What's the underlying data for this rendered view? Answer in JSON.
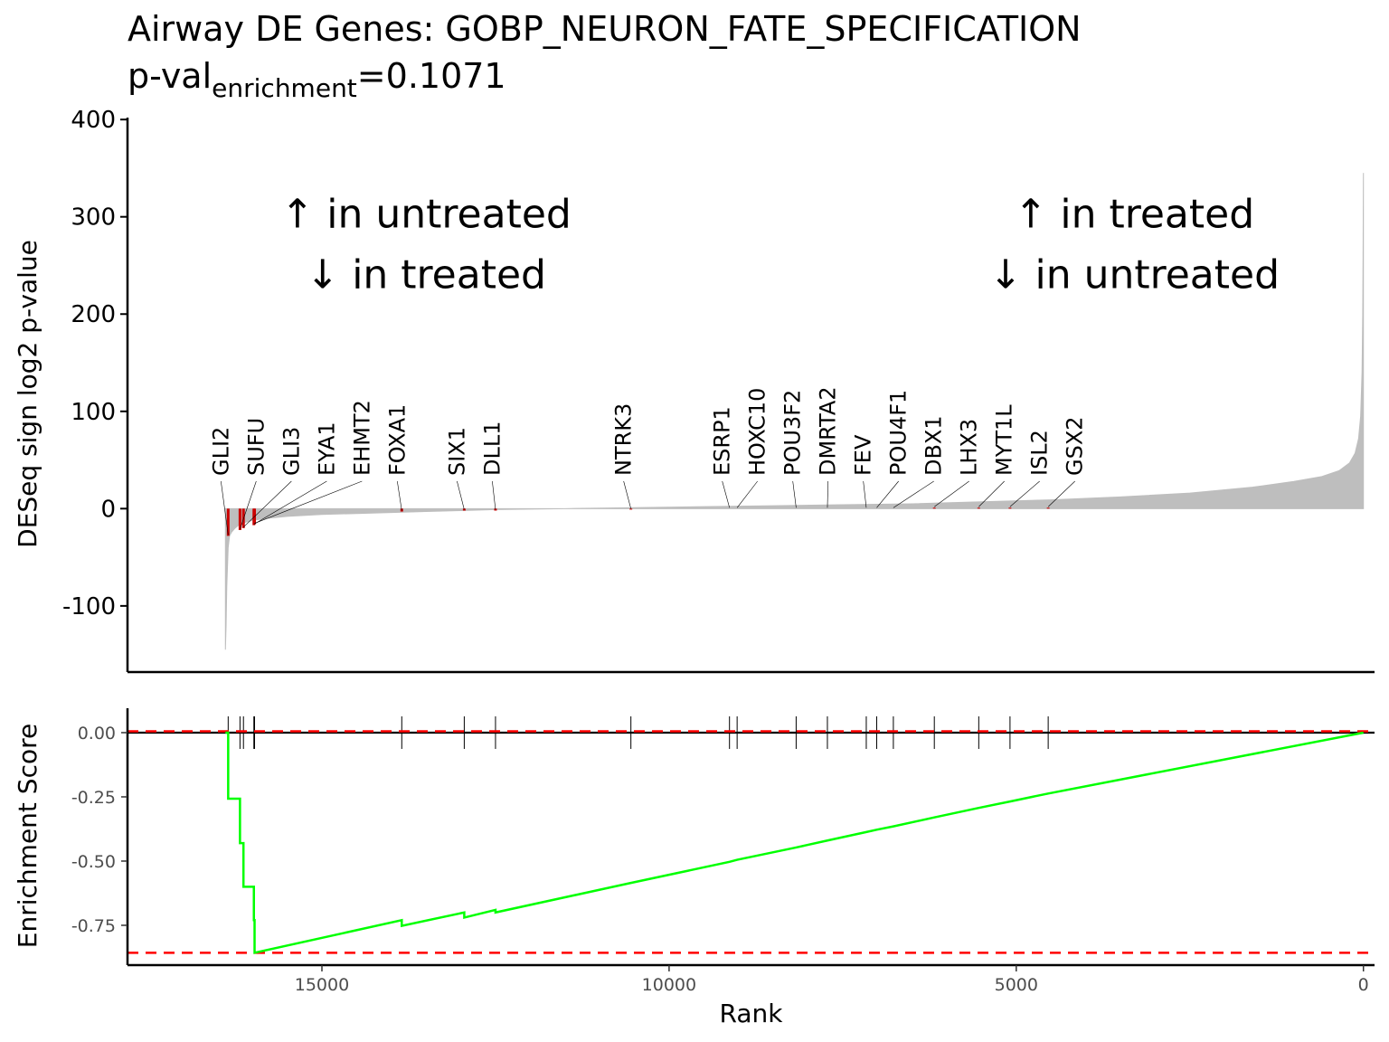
{
  "chart_data": [
    {
      "type": "area",
      "title": "Airway DE Genes: GOBP_NEURON_FATE_SPECIFICATION",
      "subtitle": {
        "prefix": "p-val",
        "subscript": "enrichment",
        "suffix": "=0.1071"
      },
      "xlabel": "",
      "ylabel": "DESeq sign log2 p-value",
      "x_reversed": true,
      "xlim": [
        -160,
        17800
      ],
      "ylim": [
        -168,
        402
      ],
      "yticks": [
        400,
        300,
        200,
        100,
        0,
        -100
      ],
      "ytick_labels": [
        "400",
        "300",
        "200",
        "100",
        "0",
        "-100"
      ],
      "ranked_curve": {
        "rank": [
          0,
          5,
          10,
          20,
          40,
          70,
          120,
          200,
          350,
          600,
          1000,
          1600,
          2500,
          3500,
          4500,
          5500,
          6500,
          7500,
          8500,
          9500,
          10500,
          11500,
          12500,
          13000,
          13500,
          14000,
          14500,
          15000,
          15500,
          15800,
          16000,
          16100,
          16200,
          16250,
          16300,
          16330,
          16350,
          16370,
          16380,
          16390
        ],
        "value": [
          345,
          260,
          200,
          140,
          95,
          72,
          57,
          47,
          39,
          33,
          28,
          22,
          16,
          12,
          9,
          7,
          5,
          4,
          3,
          2,
          1,
          0,
          -1,
          -2,
          -3,
          -4,
          -5,
          -6,
          -8,
          -10,
          -12,
          -14,
          -17,
          -20,
          -24,
          -28,
          -40,
          -80,
          -120,
          -145
        ],
        "color": "#bebebe"
      },
      "gene_hits": [
        {
          "gene": "GLI2",
          "rank": 16350,
          "value": -28
        },
        {
          "gene": "SUFU",
          "rank": 16180,
          "value": -22
        },
        {
          "gene": "GLI3",
          "rank": 16130,
          "value": -20
        },
        {
          "gene": "EYA1",
          "rank": 15980,
          "value": -17
        },
        {
          "gene": "EHMT2",
          "rank": 15970,
          "value": -16
        },
        {
          "gene": "FOXA1",
          "rank": 13850,
          "value": -3
        },
        {
          "gene": "SIX1",
          "rank": 12950,
          "value": -2
        },
        {
          "gene": "DLL1",
          "rank": 12500,
          "value": -2
        },
        {
          "gene": "NTRK3",
          "rank": 10550,
          "value": -1
        },
        {
          "gene": "ESRP1",
          "rank": 9130,
          "value": 0
        },
        {
          "gene": "HOXC10",
          "rank": 9020,
          "value": 0
        },
        {
          "gene": "POU3F2",
          "rank": 8170,
          "value": 0
        },
        {
          "gene": "DMRTA2",
          "rank": 7720,
          "value": 0
        },
        {
          "gene": "FEV",
          "rank": 7160,
          "value": 0
        },
        {
          "gene": "POU4F1",
          "rank": 7010,
          "value": 0
        },
        {
          "gene": "DBX1",
          "rank": 6770,
          "value": 0
        },
        {
          "gene": "LHX3",
          "rank": 6180,
          "value": 1
        },
        {
          "gene": "MYT1L",
          "rank": 5540,
          "value": 1
        },
        {
          "gene": "ISL2",
          "rank": 5090,
          "value": 1
        },
        {
          "gene": "GSX2",
          "rank": 4540,
          "value": 1
        }
      ],
      "hit_color": "#cc0000",
      "annotations": [
        {
          "line1": "↑ in untreated",
          "line2": "↓ in treated",
          "x": 13500,
          "y": 278
        },
        {
          "line1": "↑ in treated",
          "line2": "↓ in untreated",
          "x": 3300,
          "y": 278
        }
      ]
    },
    {
      "type": "line",
      "title": "",
      "xlabel": "Rank",
      "ylabel": "Enrichment Score",
      "x_reversed": true,
      "xlim": [
        -160,
        17800
      ],
      "ylim": [
        -0.905,
        0.095
      ],
      "xticks": [
        15000,
        10000,
        5000,
        0
      ],
      "xtick_labels": [
        "15000",
        "10000",
        "5000",
        "0"
      ],
      "yticks": [
        0.0,
        -0.25,
        -0.5,
        -0.75
      ],
      "ytick_labels": [
        "0.00",
        "-0.25",
        "-0.50",
        "-0.75"
      ],
      "series": [
        {
          "color": "#00ff00",
          "x": [
            16390,
            16350,
            16350,
            16180,
            16180,
            16130,
            16130,
            15980,
            15980,
            15970,
            15970,
            13850,
            13850,
            12950,
            12950,
            12500,
            12500,
            10550,
            10550,
            9130,
            9130,
            9020,
            9020,
            8170,
            8170,
            7720,
            7720,
            7160,
            7160,
            7010,
            7010,
            6770,
            6770,
            6180,
            6180,
            5540,
            5540,
            5090,
            5090,
            4540,
            4540,
            0
          ],
          "y": [
            0.0,
            0.0,
            -0.257,
            -0.257,
            -0.43,
            -0.43,
            -0.6,
            -0.6,
            -0.73,
            -0.73,
            -0.857,
            -0.73,
            -0.752,
            -0.7,
            -0.72,
            -0.69,
            -0.7,
            -0.585,
            -0.585,
            -0.503,
            -0.503,
            -0.495,
            -0.495,
            -0.447,
            -0.447,
            -0.42,
            -0.42,
            -0.387,
            -0.387,
            -0.378,
            -0.378,
            -0.365,
            -0.365,
            -0.33,
            -0.33,
            -0.293,
            -0.293,
            -0.268,
            -0.268,
            -0.237,
            -0.237,
            0.0
          ]
        }
      ],
      "reference_lines": [
        {
          "y": 0.0,
          "color": "#000000",
          "style": "solid"
        },
        {
          "y": 0.005,
          "color": "#ff0000",
          "style": "dashed"
        },
        {
          "y": -0.857,
          "color": "#ff0000",
          "style": "dashed"
        }
      ],
      "rug_ranks": [
        16350,
        16180,
        16130,
        15980,
        15970,
        13850,
        12950,
        12500,
        10550,
        9130,
        9020,
        8170,
        7720,
        7160,
        7010,
        6770,
        6180,
        5540,
        5090,
        4540
      ]
    }
  ]
}
